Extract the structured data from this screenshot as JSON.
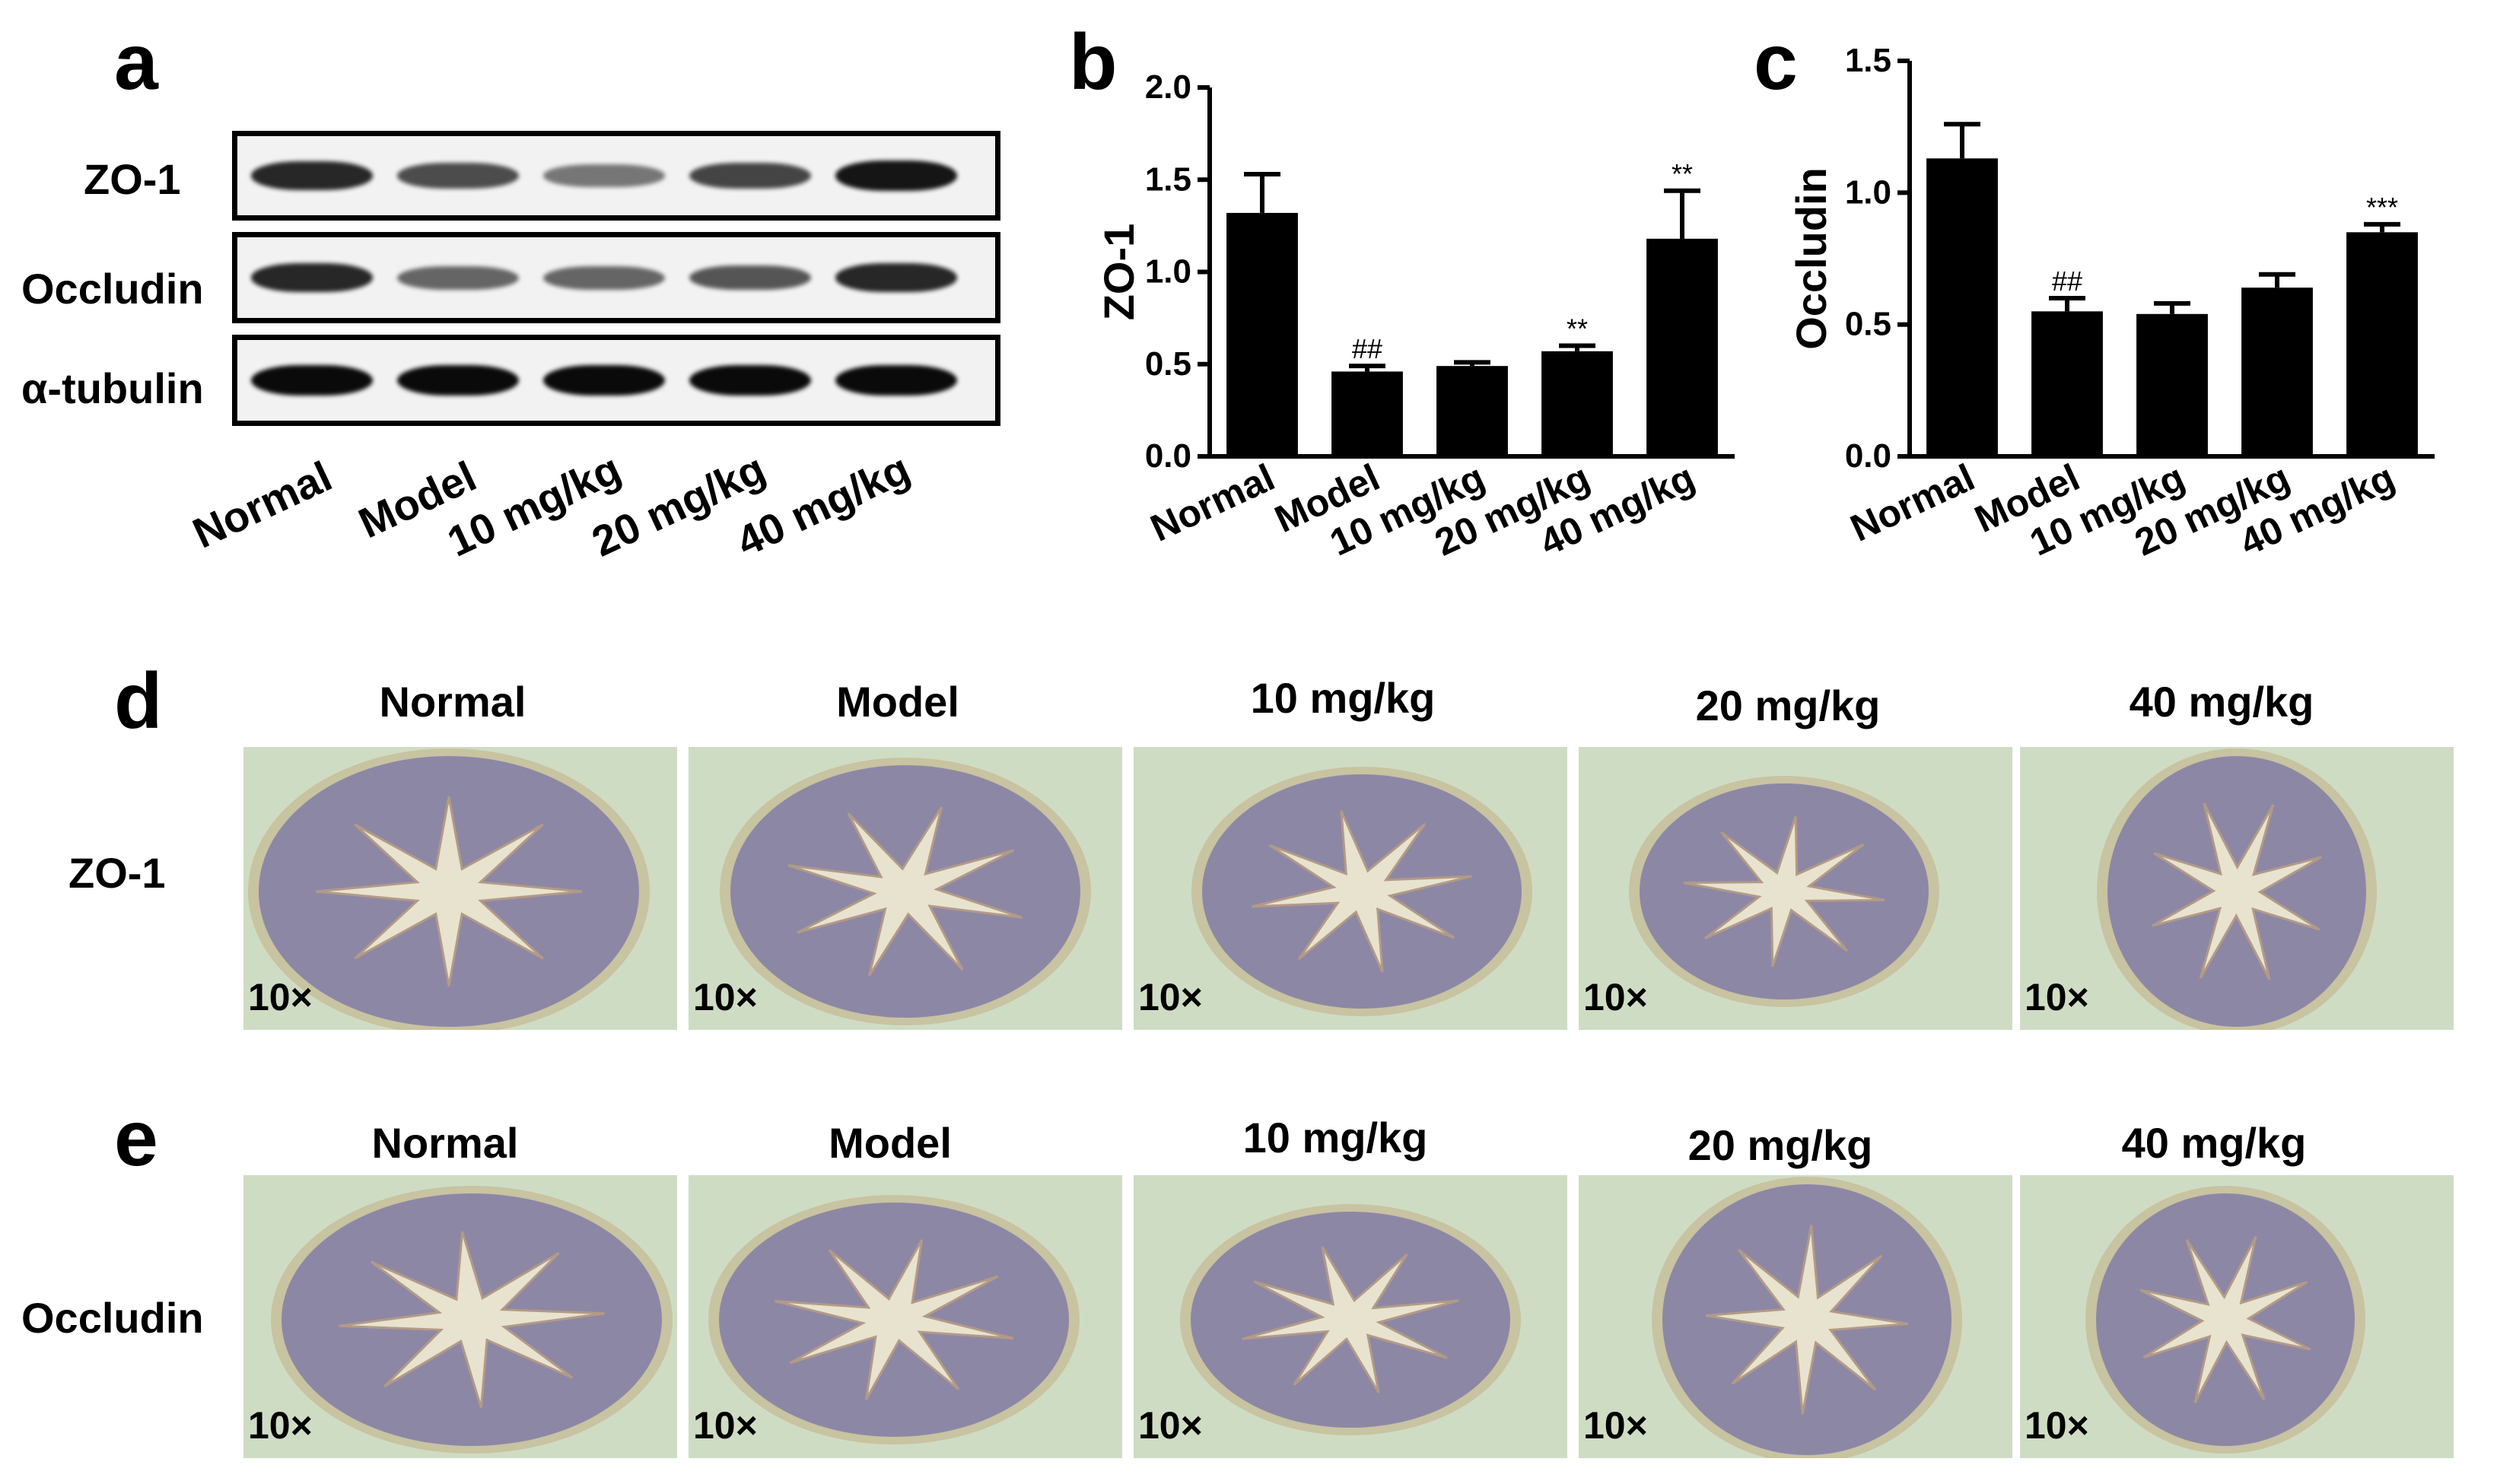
{
  "panels": {
    "a": "a",
    "b": "b",
    "c": "c",
    "d": "d",
    "e": "e"
  },
  "western_blot": {
    "rows": [
      "ZO-1",
      "Occludin",
      "α-tubulin"
    ],
    "lanes": [
      "Normal",
      "Model",
      "10 mg/kg",
      "20 mg/kg",
      "40 mg/kg"
    ],
    "band_intensity": [
      [
        0.85,
        0.65,
        0.4,
        0.7,
        0.95
      ],
      [
        0.85,
        0.5,
        0.5,
        0.6,
        0.85
      ],
      [
        1.0,
        1.0,
        1.0,
        1.0,
        1.0
      ]
    ]
  },
  "chart_data": [
    {
      "type": "bar",
      "categories": [
        "Normal",
        "Model",
        "10 mg/kg",
        "20 mg/kg",
        "40 mg/kg"
      ],
      "values": [
        1.32,
        0.46,
        0.49,
        0.57,
        1.18
      ],
      "errors": [
        0.21,
        0.03,
        0.02,
        0.03,
        0.26
      ],
      "annotations": [
        "",
        "##",
        "",
        "**",
        "**"
      ],
      "ylabel": "ZO-1",
      "ylim": [
        0,
        2.0
      ],
      "yticks": [
        "0.0",
        "0.5",
        "1.0",
        "1.5",
        "2.0"
      ],
      "grid": false,
      "bar_color": "#000000"
    },
    {
      "type": "bar",
      "categories": [
        "Normal",
        "Model",
        "10 mg/kg",
        "20 mg/kg",
        "40 mg/kg"
      ],
      "values": [
        1.13,
        0.55,
        0.54,
        0.64,
        0.85
      ],
      "errors": [
        0.13,
        0.05,
        0.04,
        0.05,
        0.03
      ],
      "annotations": [
        "",
        "##",
        "",
        "",
        "***"
      ],
      "ylabel": "Occludin",
      "ylim": [
        0,
        1.5
      ],
      "yticks": [
        "0.0",
        "0.5",
        "1.0",
        "1.5"
      ],
      "grid": false,
      "bar_color": "#000000"
    }
  ],
  "histology": {
    "groups": [
      "Normal",
      "Model",
      "10 mg/kg",
      "20 mg/kg",
      "40 mg/kg"
    ],
    "d_row_label": "ZO-1",
    "e_row_label": "Occludin",
    "magnification": "10×"
  }
}
